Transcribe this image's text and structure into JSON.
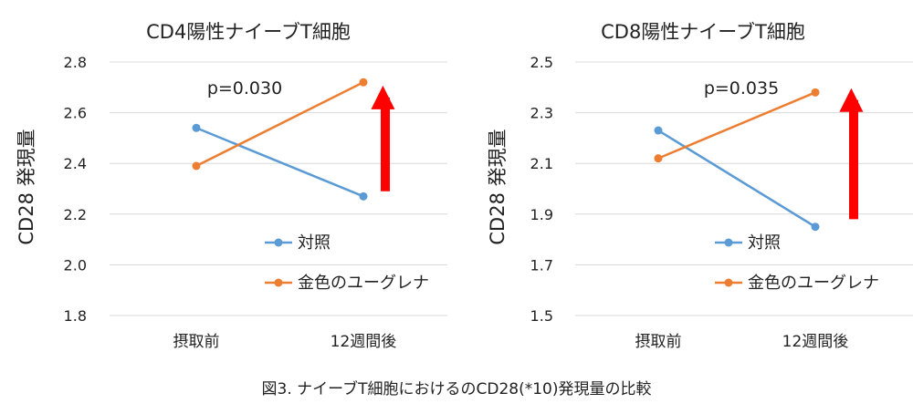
{
  "caption": "図3. ナイーブT細胞におけるのCD28(*10)発現量の比較",
  "colors": {
    "control": "#5B9BD5",
    "euglena": "#ED7D31",
    "arrow": "#FF0000",
    "grid": "#D9D9D9"
  },
  "chart_data": [
    {
      "type": "line",
      "title": "CD4陽性ナイーブT細胞",
      "ylabel": "CD28 発現量",
      "xlabel": "",
      "categories": [
        "摂取前",
        "12週間後"
      ],
      "ylim": [
        1.8,
        2.8
      ],
      "yticks": [
        "1.8",
        "2.0",
        "2.2",
        "2.4",
        "2.6",
        "2.8"
      ],
      "grid": true,
      "legend_position": "right-lower",
      "series": [
        {
          "name": "対照",
          "values": [
            2.54,
            2.27
          ]
        },
        {
          "name": "金色のユーグレナ",
          "values": [
            2.39,
            2.72
          ]
        }
      ],
      "annotation": "p=0.030",
      "arrow": {
        "from": 2.29,
        "to": 2.66
      }
    },
    {
      "type": "line",
      "title": "CD8陽性ナイーブT細胞",
      "ylabel": "CD28 発現量",
      "xlabel": "",
      "categories": [
        "摂取前",
        "12週間後"
      ],
      "ylim": [
        1.5,
        2.5
      ],
      "yticks": [
        "1.5",
        "1.7",
        "1.9",
        "2.1",
        "2.3",
        "2.5"
      ],
      "grid": true,
      "legend_position": "right-lower",
      "series": [
        {
          "name": "対照",
          "values": [
            2.23,
            1.85
          ]
        },
        {
          "name": "金色のユーグレナ",
          "values": [
            2.12,
            2.38
          ]
        }
      ],
      "annotation": "p=0.035",
      "arrow": {
        "from": 1.88,
        "to": 2.35
      }
    }
  ]
}
